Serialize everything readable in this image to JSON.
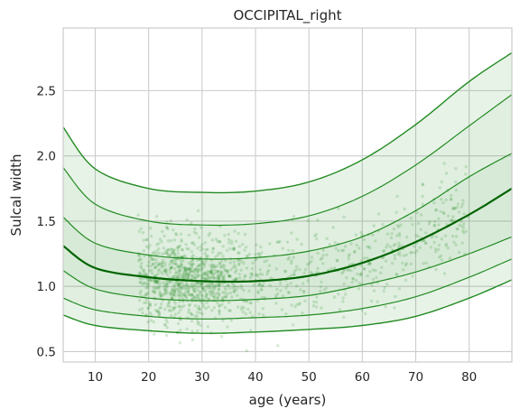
{
  "chart_data": {
    "type": "line",
    "title": "OCCIPITAL_right",
    "xlabel": "age (years)",
    "ylabel": "Sulcal width",
    "xlim": [
      4,
      88
    ],
    "ylim": [
      0.42,
      2.98
    ],
    "xticks": [
      10,
      20,
      30,
      40,
      50,
      60,
      70,
      80
    ],
    "yticks": [
      0.5,
      1.0,
      1.5,
      2.0,
      2.5
    ],
    "xtick_labels": [
      "10",
      "20",
      "30",
      "40",
      "50",
      "60",
      "70",
      "80"
    ],
    "ytick_labels": [
      "0.5",
      "1.0",
      "1.5",
      "2.0",
      "2.5"
    ],
    "grid": true,
    "color": "#228B22",
    "median_color": "#006400",
    "x": [
      4,
      10,
      20,
      30,
      40,
      50,
      60,
      70,
      80,
      88
    ],
    "series": [
      {
        "values": [
          2.22,
          1.9,
          1.75,
          1.72,
          1.73,
          1.8,
          1.97,
          2.24,
          2.57,
          2.79
        ]
      },
      {
        "values": [
          1.91,
          1.63,
          1.5,
          1.47,
          1.48,
          1.54,
          1.69,
          1.93,
          2.23,
          2.47
        ]
      },
      {
        "values": [
          1.53,
          1.33,
          1.24,
          1.21,
          1.22,
          1.27,
          1.38,
          1.58,
          1.84,
          2.02
        ]
      },
      {
        "values": [
          1.31,
          1.14,
          1.07,
          1.04,
          1.04,
          1.08,
          1.18,
          1.34,
          1.55,
          1.75
        ]
      },
      {
        "values": [
          1.12,
          0.98,
          0.91,
          0.89,
          0.9,
          0.93,
          1.01,
          1.11,
          1.25,
          1.38
        ]
      },
      {
        "values": [
          0.91,
          0.82,
          0.77,
          0.75,
          0.76,
          0.78,
          0.83,
          0.92,
          1.07,
          1.21
        ]
      },
      {
        "values": [
          0.78,
          0.7,
          0.66,
          0.64,
          0.65,
          0.67,
          0.7,
          0.77,
          0.91,
          1.05
        ]
      }
    ],
    "scatter": {
      "x_range": [
        18,
        80
      ],
      "density_peak_x": 27,
      "count": 1400,
      "opacity": 0.18
    }
  }
}
